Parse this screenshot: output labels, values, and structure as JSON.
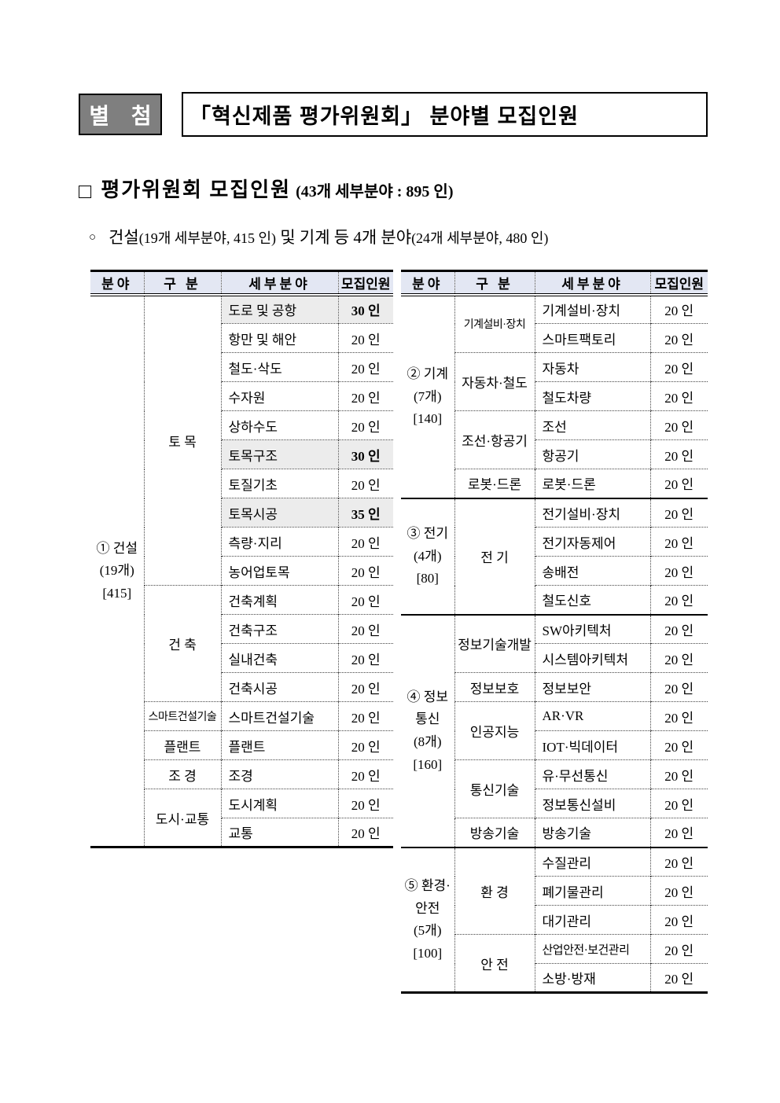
{
  "header": {
    "badge": "별 첨",
    "title": "「혁신제품 평가위원회」 분야별 모집인원"
  },
  "section_heading": {
    "bullet": "□",
    "main": "평가위원회 모집인원",
    "detail": "(43개 세부분야 : 895 인)"
  },
  "sub_heading": {
    "bullet": "○",
    "segments": [
      {
        "text": "건설",
        "emphasis": true
      },
      {
        "text": "(19개 세부분야, 415 인)",
        "emphasis": false
      },
      {
        "text": " 및 기계 등 4개 분야",
        "emphasis": true
      },
      {
        "text": "(24개 세부분야, 480 인)",
        "emphasis": false
      }
    ]
  },
  "colors": {
    "header_bg": "#e3e7f3",
    "highlight_bg": "#ececec",
    "badge_bg": "#7f7f7f",
    "badge_text": "#ffffff"
  },
  "tables": [
    {
      "name": "construction",
      "headers": [
        "분야",
        "구  분",
        "세부분야",
        "모집인원"
      ],
      "sections": [
        {
          "field_lines": [
            "① 건설",
            "(19개)",
            "[415]"
          ],
          "groups": [
            {
              "label": "토  목",
              "rows": [
                {
                  "subfield": "도로 및 공항",
                  "count": "30 인",
                  "highlight": true
                },
                {
                  "subfield": "항만 및 해안",
                  "count": "20 인"
                },
                {
                  "subfield": "철도·삭도",
                  "count": "20 인"
                },
                {
                  "subfield": "수자원",
                  "count": "20 인"
                },
                {
                  "subfield": "상하수도",
                  "count": "20 인"
                },
                {
                  "subfield": "토목구조",
                  "count": "30 인",
                  "highlight": true
                },
                {
                  "subfield": "토질기초",
                  "count": "20 인"
                },
                {
                  "subfield": "토목시공",
                  "count": "35 인",
                  "highlight": true
                },
                {
                  "subfield": "측량·지리",
                  "count": "20 인"
                },
                {
                  "subfield": "농어업토목",
                  "count": "20 인"
                }
              ]
            },
            {
              "label": "건  축",
              "rows": [
                {
                  "subfield": "건축계획",
                  "count": "20 인"
                },
                {
                  "subfield": "건축구조",
                  "count": "20 인"
                },
                {
                  "subfield": "실내건축",
                  "count": "20 인"
                },
                {
                  "subfield": "건축시공",
                  "count": "20 인"
                }
              ]
            },
            {
              "label": "스마트건설기술",
              "rows": [
                {
                  "subfield": "스마트건설기술",
                  "count": "20 인"
                }
              ]
            },
            {
              "label": "플랜트",
              "rows": [
                {
                  "subfield": "플랜트",
                  "count": "20 인"
                }
              ]
            },
            {
              "label": "조  경",
              "rows": [
                {
                  "subfield": "조경",
                  "count": "20 인"
                }
              ]
            },
            {
              "label": "도시·교통",
              "rows": [
                {
                  "subfield": "도시계획",
                  "count": "20 인"
                },
                {
                  "subfield": "교통",
                  "count": "20 인"
                }
              ]
            }
          ]
        }
      ]
    },
    {
      "name": "machinery-electric-ict-environment",
      "headers": [
        "분야",
        "구  분",
        "세부분야",
        "모집인원"
      ],
      "sections": [
        {
          "field_lines": [
            "② 기계",
            "(7개)",
            "[140]"
          ],
          "groups": [
            {
              "label": "기계설비·장치",
              "rows": [
                {
                  "subfield": "기계설비·장치",
                  "count": "20 인"
                },
                {
                  "subfield": "스마트팩토리",
                  "count": "20 인"
                }
              ]
            },
            {
              "label": "자동차·철도",
              "rows": [
                {
                  "subfield": "자동차",
                  "count": "20 인"
                },
                {
                  "subfield": "철도차량",
                  "count": "20 인"
                }
              ]
            },
            {
              "label": "조선·항공기",
              "rows": [
                {
                  "subfield": "조선",
                  "count": "20 인"
                },
                {
                  "subfield": "항공기",
                  "count": "20 인"
                }
              ]
            },
            {
              "label": "로봇·드론",
              "rows": [
                {
                  "subfield": "로봇·드론",
                  "count": "20 인"
                }
              ]
            }
          ]
        },
        {
          "field_lines": [
            "③ 전기",
            "(4개)",
            "[80]"
          ],
          "groups": [
            {
              "label": "전  기",
              "rows": [
                {
                  "subfield": "전기설비·장치",
                  "count": "20 인"
                },
                {
                  "subfield": "전기자동제어",
                  "count": "20 인"
                },
                {
                  "subfield": "송배전",
                  "count": "20 인"
                },
                {
                  "subfield": "철도신호",
                  "count": "20 인"
                }
              ]
            }
          ]
        },
        {
          "field_lines": [
            "④ 정보",
            "통신",
            "(8개)",
            "[160]"
          ],
          "groups": [
            {
              "label": "정보기술개발",
              "rows": [
                {
                  "subfield": "SW아키텍처",
                  "count": "20 인"
                },
                {
                  "subfield": "시스템아키텍처",
                  "count": "20 인"
                }
              ]
            },
            {
              "label": "정보보호",
              "rows": [
                {
                  "subfield": "정보보안",
                  "count": "20 인"
                }
              ]
            },
            {
              "label": "인공지능",
              "rows": [
                {
                  "subfield": "AR·VR",
                  "count": "20 인"
                },
                {
                  "subfield": "IOT·빅데이터",
                  "count": "20 인"
                }
              ]
            },
            {
              "label": "통신기술",
              "rows": [
                {
                  "subfield": "유·무선통신",
                  "count": "20 인"
                },
                {
                  "subfield": "정보통신설비",
                  "count": "20 인"
                }
              ]
            },
            {
              "label": "방송기술",
              "rows": [
                {
                  "subfield": "방송기술",
                  "count": "20 인"
                }
              ]
            }
          ]
        },
        {
          "field_lines": [
            "⑤ 환경·",
            "안전",
            "(5개)",
            "[100]"
          ],
          "groups": [
            {
              "label": "환  경",
              "rows": [
                {
                  "subfield": "수질관리",
                  "count": "20 인"
                },
                {
                  "subfield": "폐기물관리",
                  "count": "20 인"
                },
                {
                  "subfield": "대기관리",
                  "count": "20 인"
                }
              ]
            },
            {
              "label": "안  전",
              "rows": [
                {
                  "subfield": "산업안전·보건관리",
                  "count": "20 인"
                },
                {
                  "subfield": "소방·방재",
                  "count": "20 인"
                }
              ]
            }
          ]
        }
      ]
    }
  ]
}
